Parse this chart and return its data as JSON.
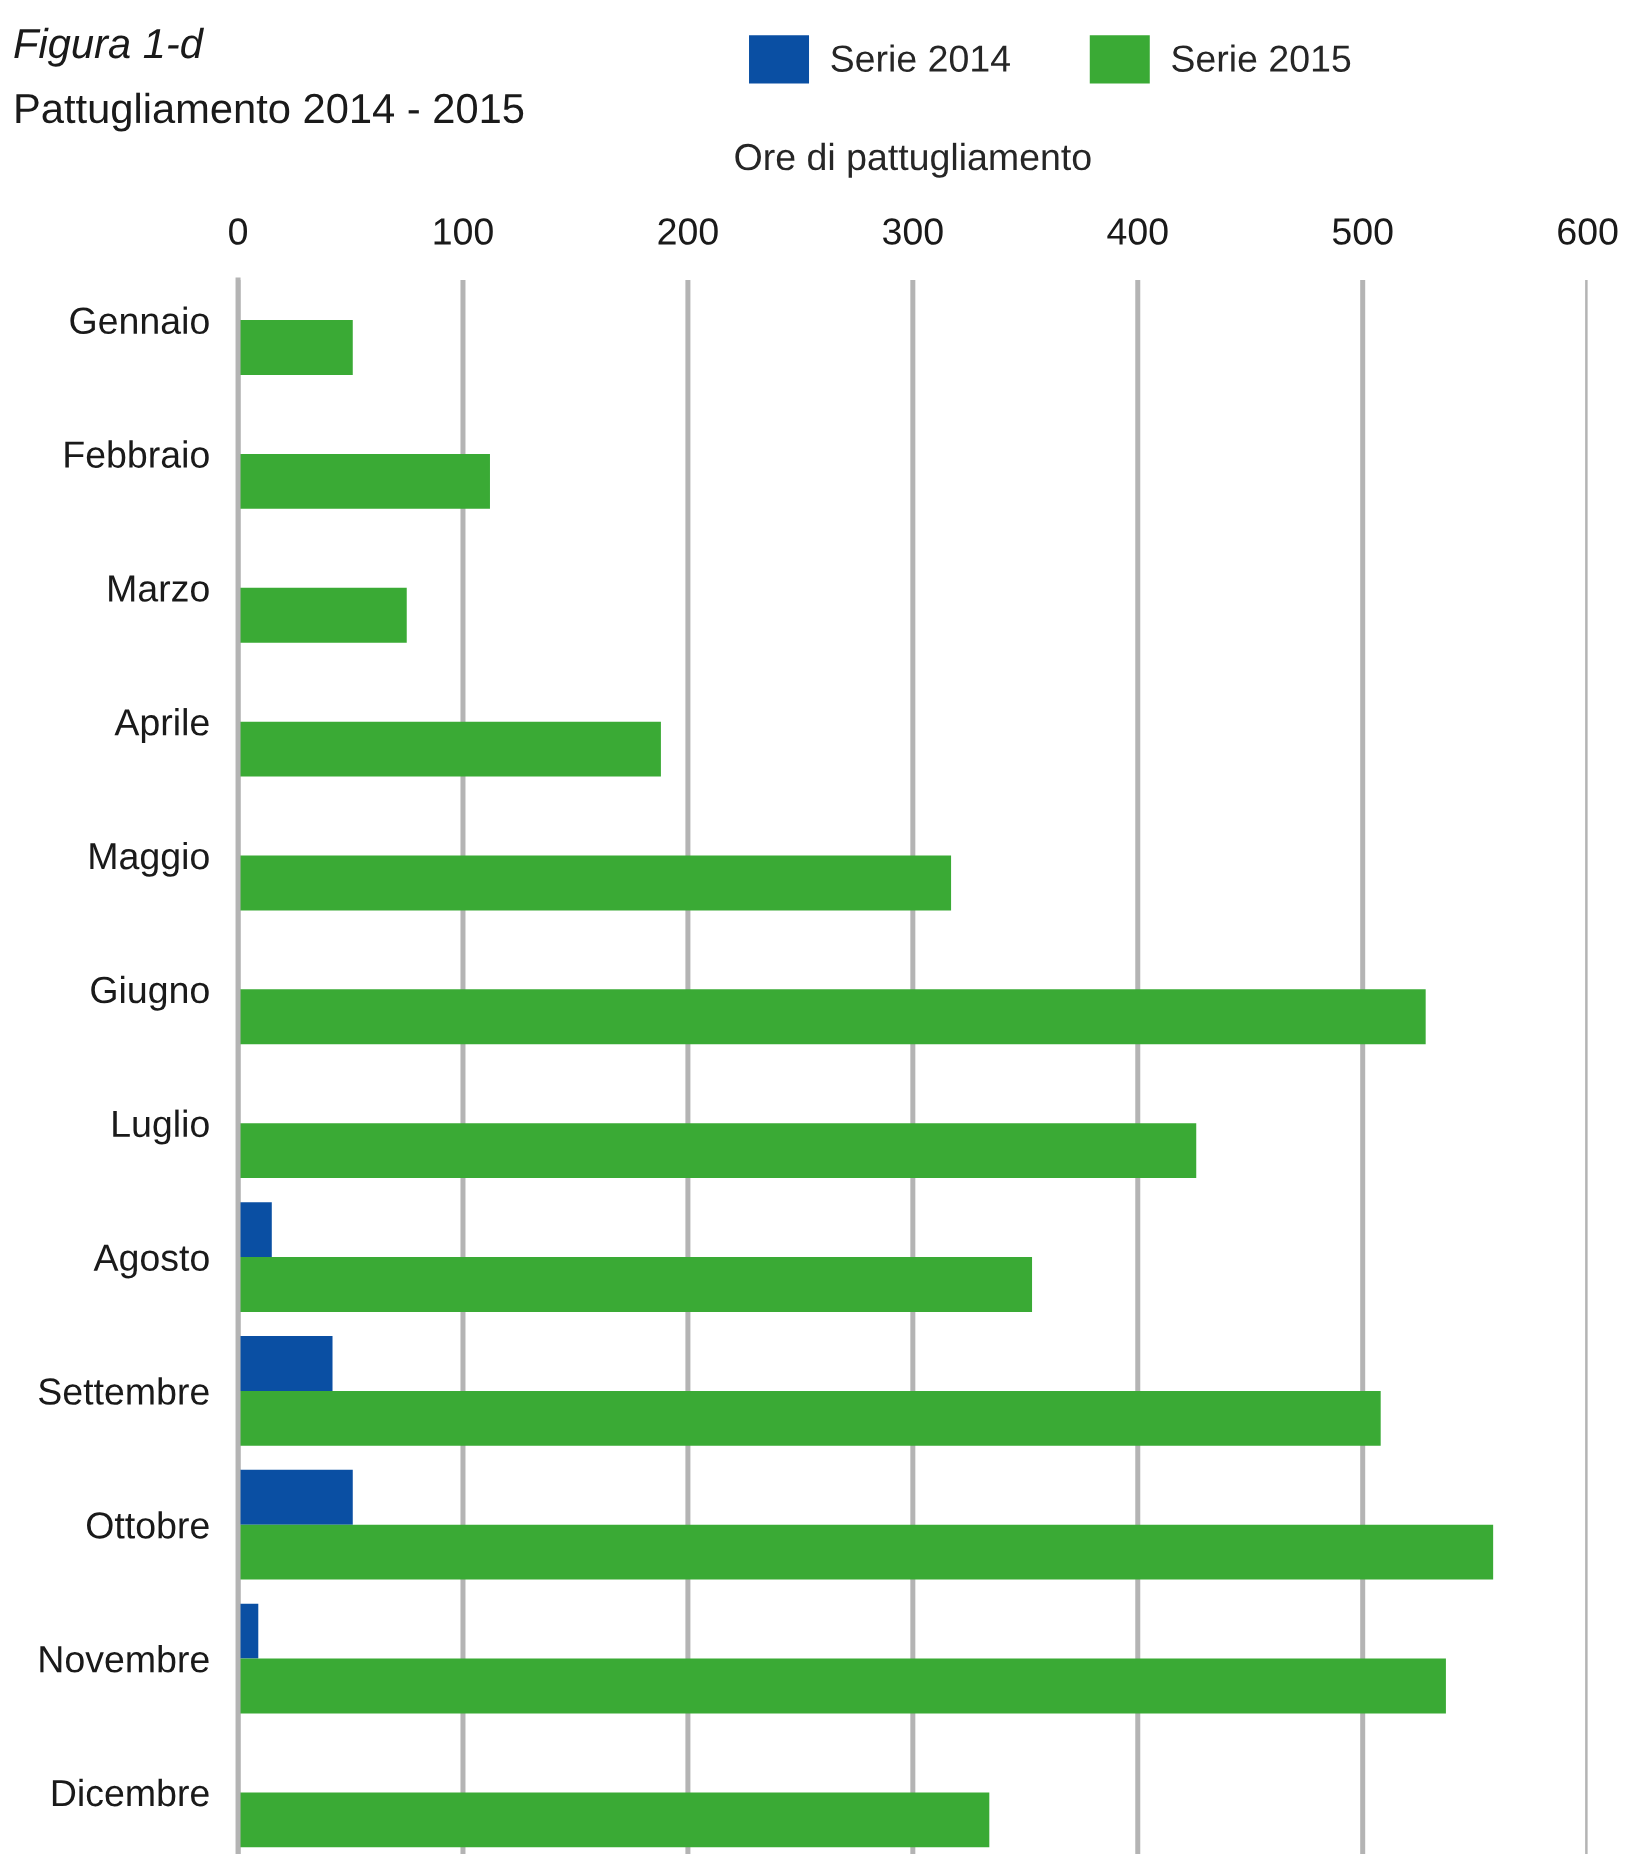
{
  "chart_data": {
    "type": "bar",
    "orientation": "horizontal",
    "title": "Figura 1-d",
    "subtitle": "Pattugliamento 2014 - 2015",
    "xlabel": "Ore di pattugliamento",
    "categories": [
      "Gennaio",
      "Febbraio",
      "Marzo",
      "Aprile",
      "Maggio",
      "Giugno",
      "Luglio",
      "Agosto",
      "Settembre",
      "Ottobre",
      "Novembre",
      "Dicembre"
    ],
    "series": [
      {
        "name": "Serie 2014",
        "color": "#0a4fa3",
        "values": [
          null,
          null,
          null,
          null,
          null,
          null,
          null,
          15,
          42,
          51,
          9,
          null
        ]
      },
      {
        "name": "Serie 2015",
        "color": "#3aaa35",
        "values": [
          51,
          112,
          75,
          188,
          317,
          528,
          426,
          353,
          508,
          558,
          537,
          334
        ]
      }
    ],
    "xlim": [
      0,
      600
    ],
    "xticks": [
      0,
      100,
      200,
      300,
      400,
      500,
      600
    ],
    "grid": "x",
    "legend": "top"
  }
}
